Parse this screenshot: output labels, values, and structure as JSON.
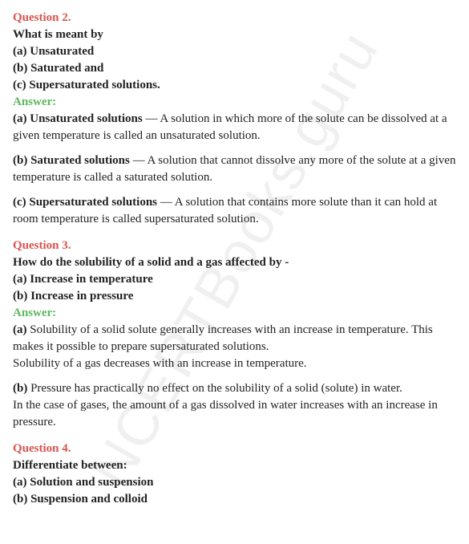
{
  "watermark": "NCERTBooks.guru",
  "q2": {
    "label": "Question 2.",
    "prompt_intro": "What is meant by",
    "prompt_a": "(a) Unsaturated",
    "prompt_b": "(b) Saturated and",
    "prompt_c": "(c) Supersaturated solutions.",
    "answer_label": "Answer:",
    "ans_a_lead": "(a) Unsaturated solutions",
    "ans_a_body": " — A solution in which more of the solute can be dissolved at a given temperature is called an unsaturated solution.",
    "ans_b_lead": "(b) Saturated solutions",
    "ans_b_body": " — A solution that cannot dissolve any more of the solute at a given temperature is called a saturated solution.",
    "ans_c_lead": "(c) Supersaturated solutions",
    "ans_c_body": " — A solution that contains more solute than it can hold at room temperature is called supersaturated solution."
  },
  "q3": {
    "label": "Question 3.",
    "prompt_intro": "How do the solubility of a solid and a gas affected by -",
    "prompt_a": "(a) Increase in temperature",
    "prompt_b": "(b) Increase in pressure",
    "answer_label": "Answer:",
    "ans_a_lead": "(a)",
    "ans_a_body": " Solubility of a solid solute generally increases with an increase in temperature. This makes it possible to prepare supersaturated solutions.",
    "ans_a_body2": "Solubility of a gas decreases with an increase in temperature.",
    "ans_b_lead": "(b)",
    "ans_b_body": " Pressure has practically no effect on the solubility of a solid (solute) in water.",
    "ans_b_body2": "In the case of gases, the amount of a gas dissolved in water increases with an increase in pressure."
  },
  "q4": {
    "label": "Question 4.",
    "prompt_intro": "Differentiate between:",
    "prompt_a": "(a) Solution and suspension",
    "prompt_b": "(b) Suspension and colloid"
  },
  "colors": {
    "question": "#d9534f",
    "answer": "#5cb85c",
    "text": "#222222",
    "watermark": "rgba(0,0,0,0.06)"
  }
}
